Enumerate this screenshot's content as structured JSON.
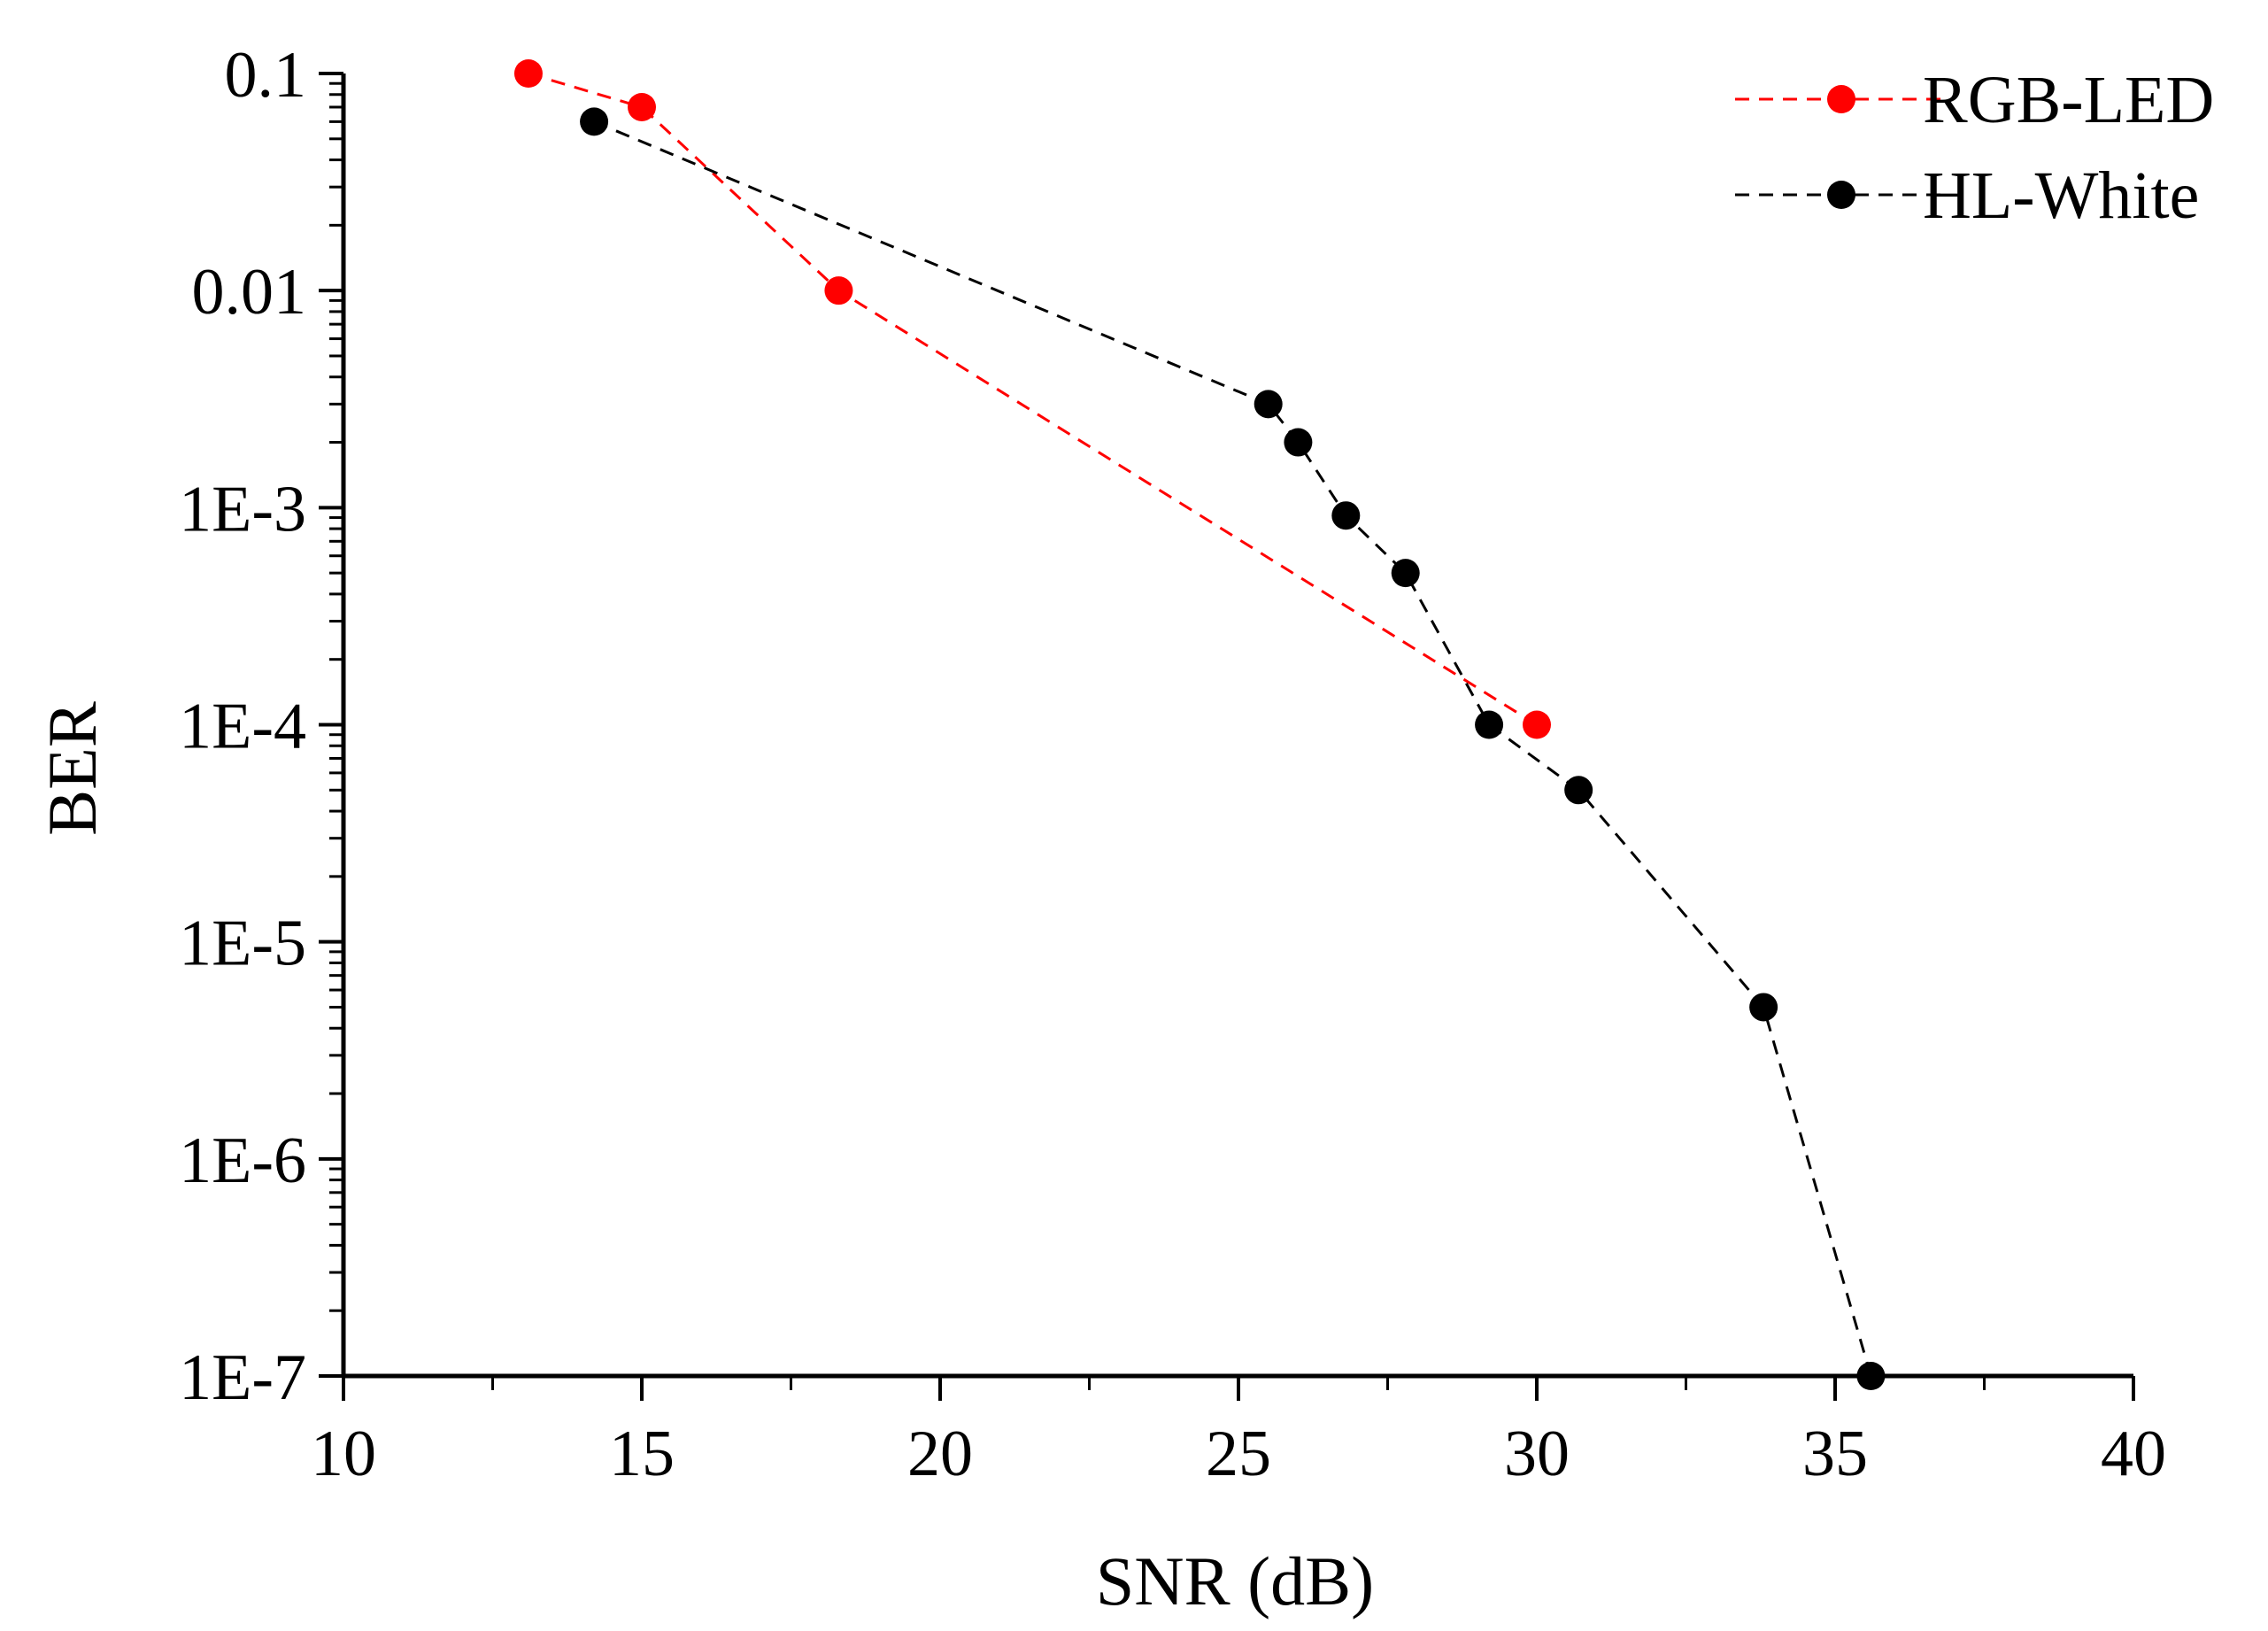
{
  "chart_data": {
    "type": "line",
    "title": "",
    "xlabel": "SNR (dB)",
    "ylabel": "BER",
    "xlim": [
      10,
      40
    ],
    "ylim": [
      1e-07,
      0.1
    ],
    "yscale": "log",
    "grid": false,
    "legend_position": "top-right",
    "x_ticks": [
      10,
      15,
      20,
      25,
      30,
      35,
      40
    ],
    "x_tick_labels": [
      "10",
      "15",
      "20",
      "25",
      "30",
      "35",
      "40"
    ],
    "y_ticks": [
      0.1,
      0.01,
      0.001,
      0.0001,
      1e-05,
      1e-06,
      1e-07
    ],
    "y_tick_labels": [
      "0.1",
      "0.01",
      "1E-3",
      "1E-4",
      "1E-5",
      "1E-6",
      "1E-7"
    ],
    "series": [
      {
        "name": "RGB-LED",
        "color": "#ff0000",
        "line_style": "dashed",
        "marker": "circle",
        "x": [
          13.1,
          15.0,
          18.3,
          30.0
        ],
        "y": [
          0.1,
          0.07,
          0.01,
          0.0001
        ]
      },
      {
        "name": "HL-White",
        "color": "#000000",
        "line_style": "dashed",
        "marker": "circle",
        "x": [
          14.2,
          25.5,
          26.0,
          26.8,
          27.8,
          29.2,
          30.7,
          33.8,
          35.6
        ],
        "y": [
          0.06,
          0.003,
          0.002,
          0.00092,
          0.0005,
          0.0001,
          5e-05,
          5e-06,
          1e-07
        ]
      }
    ]
  }
}
